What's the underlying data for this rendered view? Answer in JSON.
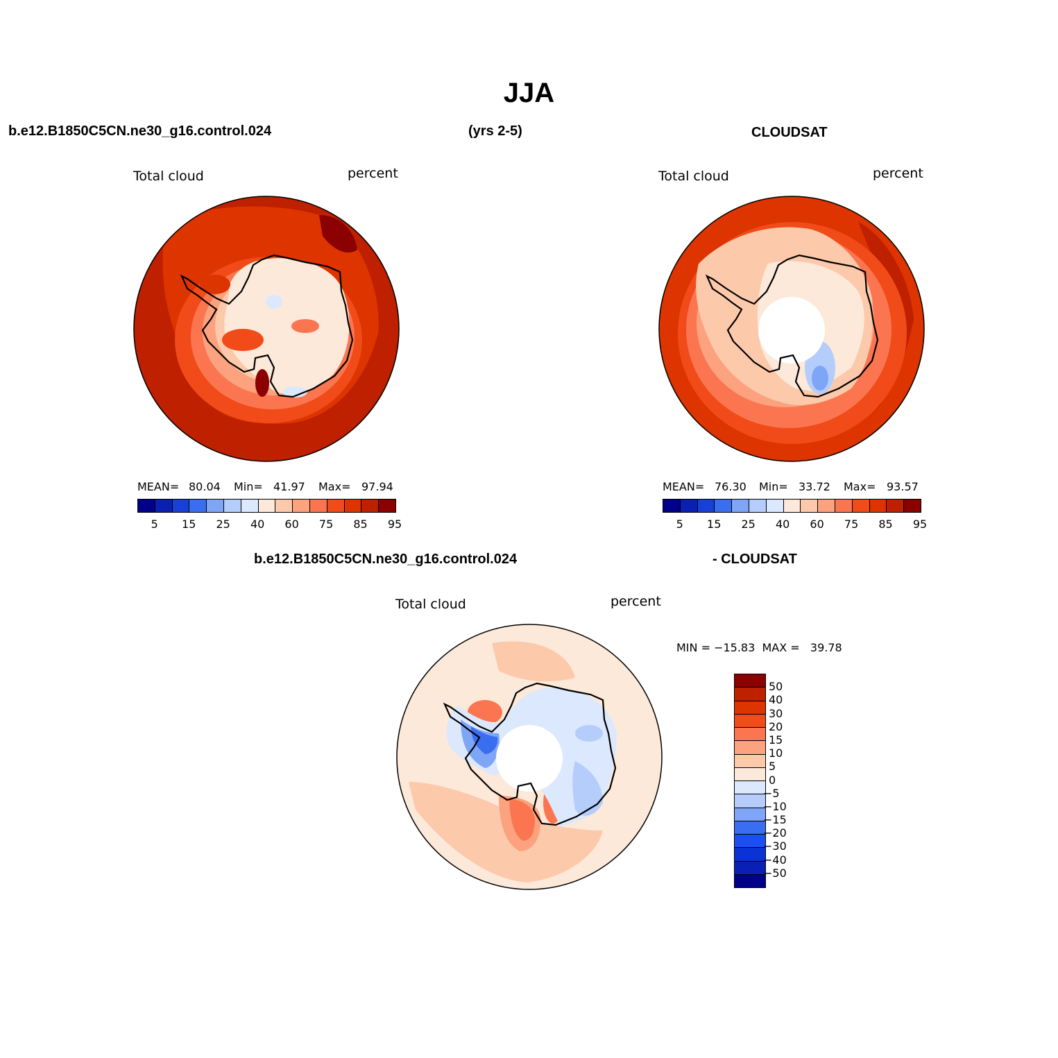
{
  "title": "JJA",
  "panels": {
    "model": {
      "case": "b.e12.B1850C5CN.ne30_g16.control.024",
      "years": "(yrs 2-5)",
      "var": "Total cloud",
      "units": "percent",
      "mean_label": "MEAN=",
      "mean": "80.04",
      "min_label": "Min=",
      "min": "41.97",
      "max_label": "Max=",
      "max": "97.94"
    },
    "obs": {
      "source": "CLOUDSAT",
      "var": "Total cloud",
      "units": "percent",
      "mean_label": "MEAN=",
      "mean": "76.30",
      "min_label": "Min=",
      "min": "33.72",
      "max_label": "Max=",
      "max": "93.57"
    },
    "diff": {
      "case": "b.e12.B1850C5CN.ne30_g16.control.024",
      "minus": "- CLOUDSAT",
      "var": "Total cloud",
      "units": "percent",
      "minmax": "MIN = −15.83  MAX =   39.78"
    }
  },
  "colorbar_abs": {
    "colors": [
      "#00008b",
      "#0a1fb4",
      "#1640d8",
      "#3a6ef0",
      "#7fa5f6",
      "#b5cdfb",
      "#dbe8fd",
      "#fde9d9",
      "#fdc9ab",
      "#fca27f",
      "#fb7650",
      "#f04b18",
      "#dd3400",
      "#be2000",
      "#8b0000"
    ],
    "ticks": [
      "5",
      "15",
      "25",
      "40",
      "60",
      "75",
      "85",
      "95"
    ]
  },
  "colorbar_diff": {
    "colors": [
      "#8b0000",
      "#be2000",
      "#dd3400",
      "#f04b18",
      "#fb7650",
      "#fca27f",
      "#fdc9ab",
      "#fde9d9",
      "#dbe8fd",
      "#b5cdfb",
      "#7fa5f6",
      "#3a6ef0",
      "#1a4ff5",
      "#0a33d5",
      "#0a1fb4",
      "#00008b"
    ],
    "ticks": [
      "50",
      "40",
      "30",
      "20",
      "15",
      "10",
      "5",
      "0",
      "−5",
      "−10",
      "−15",
      "−20",
      "−30",
      "−40",
      "−50"
    ]
  }
}
